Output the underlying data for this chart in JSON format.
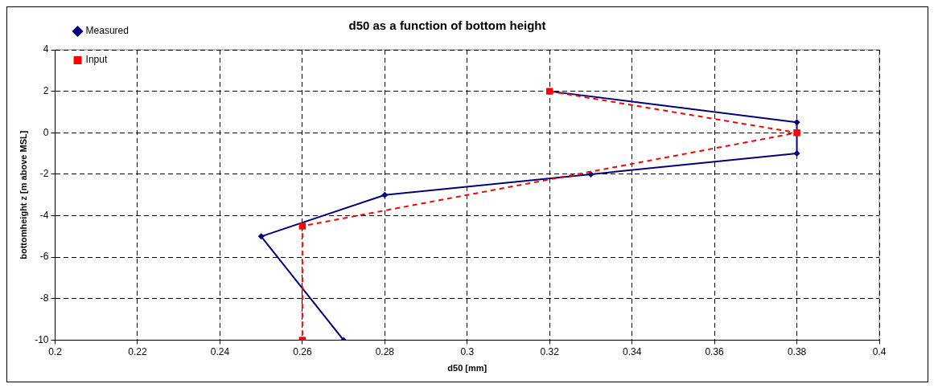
{
  "chart_data": {
    "type": "line",
    "title": "d50 as a function of bottom height",
    "xlabel": "d50 [mm]",
    "ylabel": "bottomheight z [m above MSL]",
    "xlim": [
      0.2,
      0.4
    ],
    "xticks": [
      0.2,
      0.22,
      0.24,
      0.26,
      0.28,
      0.3,
      0.32,
      0.34,
      0.36,
      0.38,
      0.4
    ],
    "ylim": [
      -10,
      4
    ],
    "yticks": [
      -10,
      -8,
      -6,
      -4,
      -2,
      0,
      2,
      4
    ],
    "grid": true,
    "legend": "top left",
    "series": [
      {
        "name": "Measured",
        "color": "#000080",
        "marker": "diamond",
        "line_style": "solid",
        "x": [
          0.32,
          0.38,
          0.38,
          0.33,
          0.28,
          0.25,
          0.27
        ],
        "values": [
          2,
          0.5,
          -1,
          -2,
          -3,
          -5,
          -10
        ]
      },
      {
        "name": "Input",
        "color": "#ff0000",
        "marker": "square",
        "line_style": "dashed",
        "x": [
          0.32,
          0.38,
          0.26,
          0.26
        ],
        "values": [
          2,
          0,
          -4.5,
          -10
        ]
      }
    ]
  }
}
